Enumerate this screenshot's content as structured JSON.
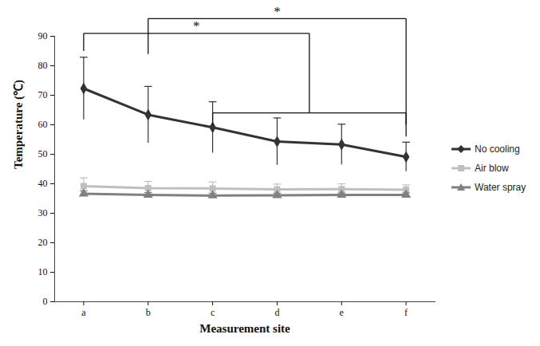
{
  "chart_data": {
    "type": "line",
    "x_label": "Measurement site",
    "y_label": "Temperature (℃)",
    "categories": [
      "a",
      "b",
      "c",
      "d",
      "e",
      "f"
    ],
    "series": [
      {
        "name": "No cooling",
        "color": "#333333",
        "marker": "diamond",
        "values": [
          72.3,
          63.4,
          59.1,
          54.3,
          53.3,
          49.1
        ],
        "errors": [
          10.6,
          9.6,
          8.7,
          8.0,
          6.9,
          5.0
        ]
      },
      {
        "name": "Air blow",
        "color": "#bfbfbf",
        "marker": "square",
        "values": [
          39.2,
          38.5,
          38.4,
          38.1,
          38.2,
          38.0
        ],
        "errors": [
          2.8,
          2.3,
          2.2,
          1.8,
          1.8,
          1.6
        ]
      },
      {
        "name": "Water spray",
        "color": "#808080",
        "marker": "triangle",
        "values": [
          36.6,
          36.2,
          36.0,
          36.1,
          36.2,
          36.2
        ],
        "errors": [
          1.0,
          0.8,
          0.8,
          0.7,
          0.7,
          0.7
        ]
      }
    ],
    "ylim": [
      0,
      90
    ],
    "yticks": [
      0,
      10,
      20,
      30,
      40,
      50,
      60,
      70,
      80,
      90
    ],
    "grid": false,
    "legend": "right",
    "annotations": [
      {
        "text": "*",
        "y": 96,
        "left": {
          "sites": [
            "b"
          ],
          "y": 84
        },
        "right": {
          "sites": [
            "f"
          ],
          "y": 56
        }
      },
      {
        "text": "*",
        "y": 91,
        "left": {
          "sites": [
            "a"
          ],
          "y": 85
        },
        "right": {
          "sites": [
            "c",
            "f"
          ],
          "y": 64,
          "foot": 60
        }
      }
    ]
  }
}
